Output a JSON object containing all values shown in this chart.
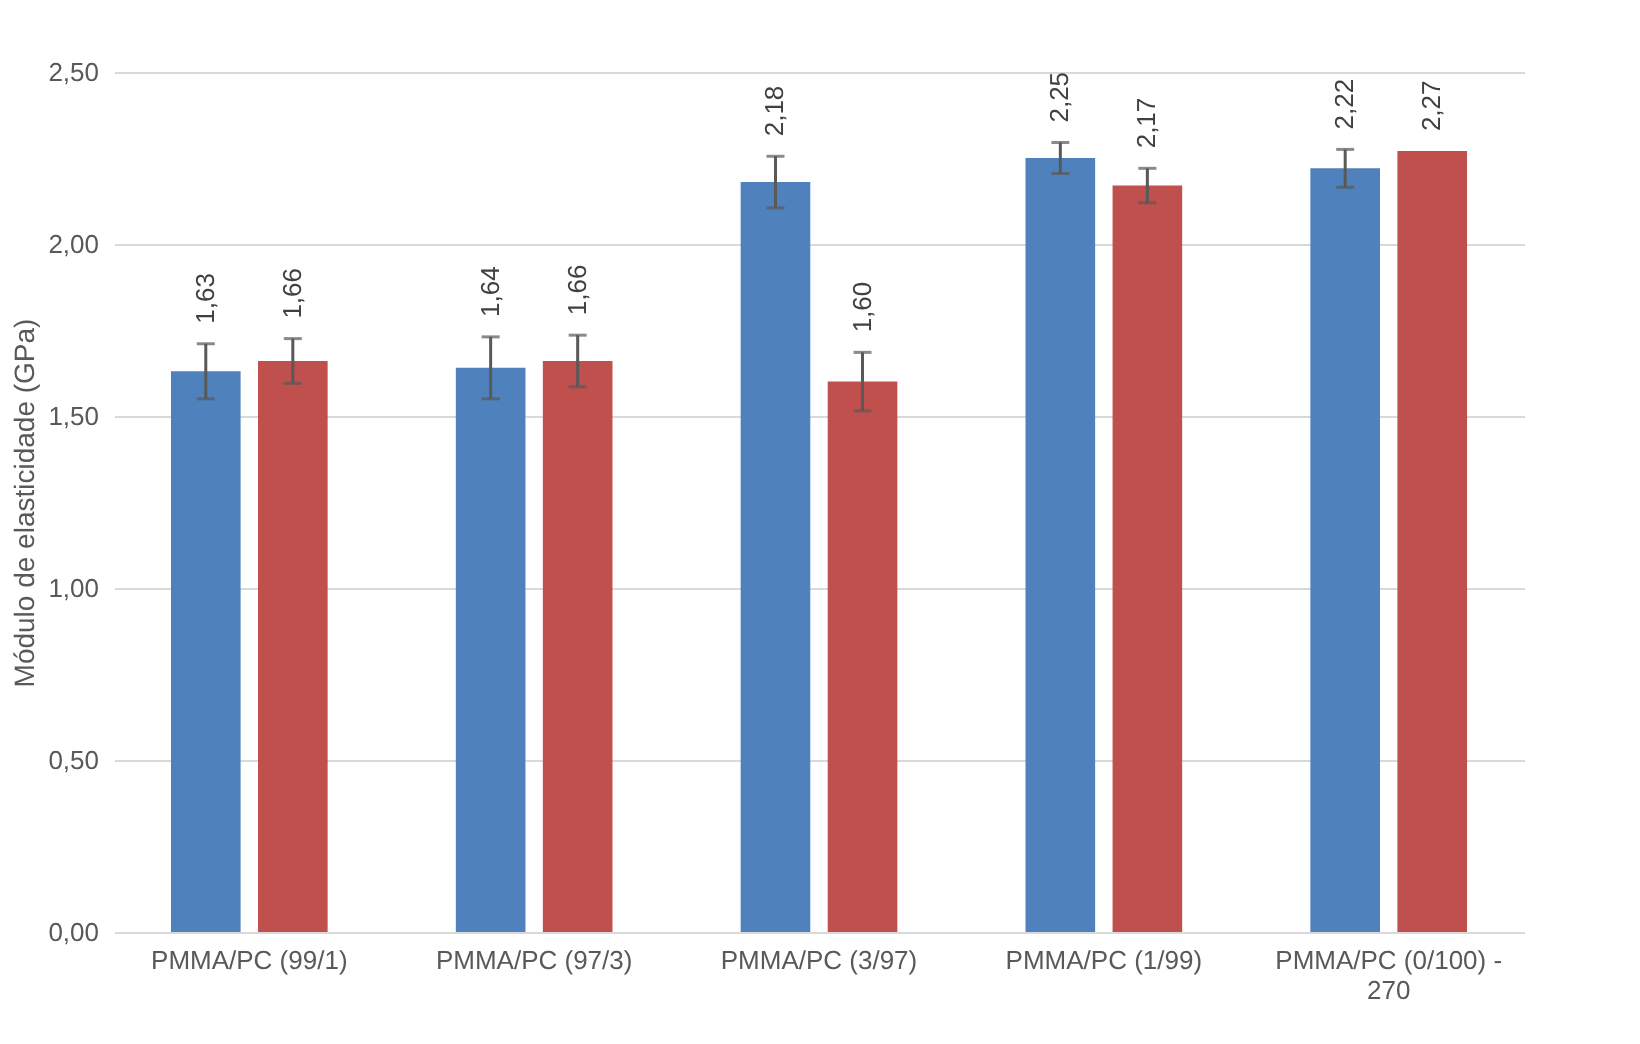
{
  "chart_data": {
    "type": "bar",
    "ylabel": "Módulo de elasticidade (GPa)",
    "categories": [
      "PMMA/PC (99/1)",
      "PMMA/PC (97/3)",
      "PMMA/PC (3/97)",
      "PMMA/PC (1/99)",
      "PMMA/PC (0/100) - 270"
    ],
    "series": [
      {
        "color": "#4f81bd",
        "values": [
          1.63,
          1.64,
          2.18,
          2.25,
          2.22
        ],
        "errors": [
          0.08,
          0.09,
          0.075,
          0.045,
          0.055
        ],
        "value_labels": [
          "1,63",
          "1,64",
          "2,18",
          "2,25",
          "2,22"
        ]
      },
      {
        "color": "#c0504d",
        "values": [
          1.66,
          1.66,
          1.6,
          2.17,
          2.27
        ],
        "errors": [
          0.065,
          0.075,
          0.085,
          0.05,
          null
        ],
        "value_labels": [
          "1,66",
          "1,66",
          "1,60",
          "2,17",
          "2,27"
        ]
      }
    ],
    "ylim": [
      0,
      2.5
    ],
    "yticks": [
      {
        "value": 0,
        "label": "0,00"
      },
      {
        "value": 0.5,
        "label": "0,50"
      },
      {
        "value": 1,
        "label": "1,00"
      },
      {
        "value": 1.5,
        "label": "1,50"
      },
      {
        "value": 2,
        "label": "2,00"
      },
      {
        "value": 2.5,
        "label": "2,50"
      }
    ],
    "grid": "y"
  }
}
